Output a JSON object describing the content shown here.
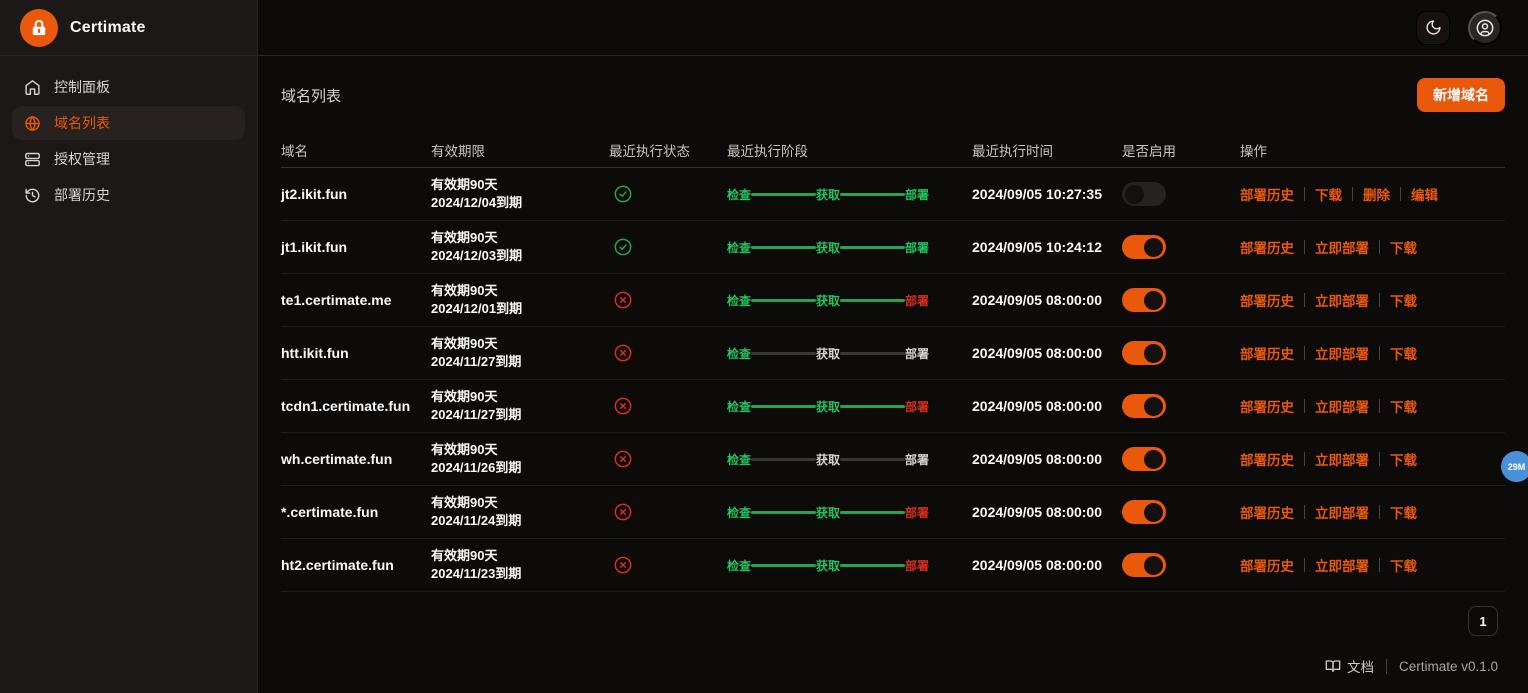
{
  "brand": {
    "name": "Certimate",
    "logo_icon": "lock-icon"
  },
  "topbar": {
    "theme_icon": "moon-icon",
    "user_icon": "user-circle-icon"
  },
  "sidebar": {
    "items": [
      {
        "label": "控制面板",
        "icon": "home-icon",
        "active": false
      },
      {
        "label": "域名列表",
        "icon": "globe-icon",
        "active": true
      },
      {
        "label": "授权管理",
        "icon": "server-icon",
        "active": false
      },
      {
        "label": "部署历史",
        "icon": "history-icon",
        "active": false
      }
    ]
  },
  "page": {
    "title": "域名列表",
    "add_button_label": "新增域名"
  },
  "table": {
    "columns": [
      "域名",
      "有效期限",
      "最近执行状态",
      "最近执行阶段",
      "最近执行时间",
      "是否启用",
      "操作"
    ],
    "stage_labels": [
      "检查",
      "获取",
      "部署"
    ],
    "rows": [
      {
        "domain": "jt2.ikit.fun",
        "validity": [
          "有效期90天",
          "2024/12/04到期"
        ],
        "status": "success",
        "stage_colors": [
          "green",
          "green",
          "green"
        ],
        "line_colors": [
          "green",
          "green"
        ],
        "time": "2024/09/05 10:27:35",
        "enabled": false,
        "actions": [
          "部署历史",
          "下载",
          "删除",
          "编辑"
        ]
      },
      {
        "domain": "jt1.ikit.fun",
        "validity": [
          "有效期90天",
          "2024/12/03到期"
        ],
        "status": "success",
        "stage_colors": [
          "green",
          "green",
          "green"
        ],
        "line_colors": [
          "green",
          "green"
        ],
        "time": "2024/09/05 10:24:12",
        "enabled": true,
        "actions": [
          "部署历史",
          "立即部署",
          "下载"
        ]
      },
      {
        "domain": "te1.certimate.me",
        "validity": [
          "有效期90天",
          "2024/12/01到期"
        ],
        "status": "error",
        "stage_colors": [
          "green",
          "green",
          "red"
        ],
        "line_colors": [
          "green",
          "green"
        ],
        "time": "2024/09/05 08:00:00",
        "enabled": true,
        "actions": [
          "部署历史",
          "立即部署",
          "下载"
        ]
      },
      {
        "domain": "htt.ikit.fun",
        "validity": [
          "有效期90天",
          "2024/11/27到期"
        ],
        "status": "error",
        "stage_colors": [
          "green",
          "muted",
          "muted"
        ],
        "line_colors": [
          "muted",
          "muted"
        ],
        "time": "2024/09/05 08:00:00",
        "enabled": true,
        "actions": [
          "部署历史",
          "立即部署",
          "下载"
        ]
      },
      {
        "domain": "tcdn1.certimate.fun",
        "validity": [
          "有效期90天",
          "2024/11/27到期"
        ],
        "status": "error",
        "stage_colors": [
          "green",
          "green",
          "red"
        ],
        "line_colors": [
          "green",
          "green"
        ],
        "time": "2024/09/05 08:00:00",
        "enabled": true,
        "actions": [
          "部署历史",
          "立即部署",
          "下载"
        ]
      },
      {
        "domain": "wh.certimate.fun",
        "validity": [
          "有效期90天",
          "2024/11/26到期"
        ],
        "status": "error",
        "stage_colors": [
          "green",
          "muted",
          "muted"
        ],
        "line_colors": [
          "muted",
          "muted"
        ],
        "time": "2024/09/05 08:00:00",
        "enabled": true,
        "actions": [
          "部署历史",
          "立即部署",
          "下载"
        ]
      },
      {
        "domain": "*.certimate.fun",
        "validity": [
          "有效期90天",
          "2024/11/24到期"
        ],
        "status": "error",
        "stage_colors": [
          "green",
          "green",
          "red"
        ],
        "line_colors": [
          "green",
          "green"
        ],
        "time": "2024/09/05 08:00:00",
        "enabled": true,
        "actions": [
          "部署历史",
          "立即部署",
          "下载"
        ]
      },
      {
        "domain": "ht2.certimate.fun",
        "validity": [
          "有效期90天",
          "2024/11/23到期"
        ],
        "status": "error",
        "stage_colors": [
          "green",
          "green",
          "red"
        ],
        "line_colors": [
          "green",
          "green"
        ],
        "time": "2024/09/05 08:00:00",
        "enabled": true,
        "actions": [
          "部署历史",
          "立即部署",
          "下载"
        ]
      }
    ]
  },
  "pagination": {
    "current_page": "1"
  },
  "footer": {
    "docs_label": "文档",
    "docs_icon": "book-icon",
    "version": "Certimate v0.1.0"
  },
  "floating_badge": {
    "text": "29M"
  },
  "colors": {
    "accent_orange": "#ea580c",
    "success_green": "#22a356",
    "error_red": "#d92d20",
    "badge_blue": "#4a90d8"
  }
}
